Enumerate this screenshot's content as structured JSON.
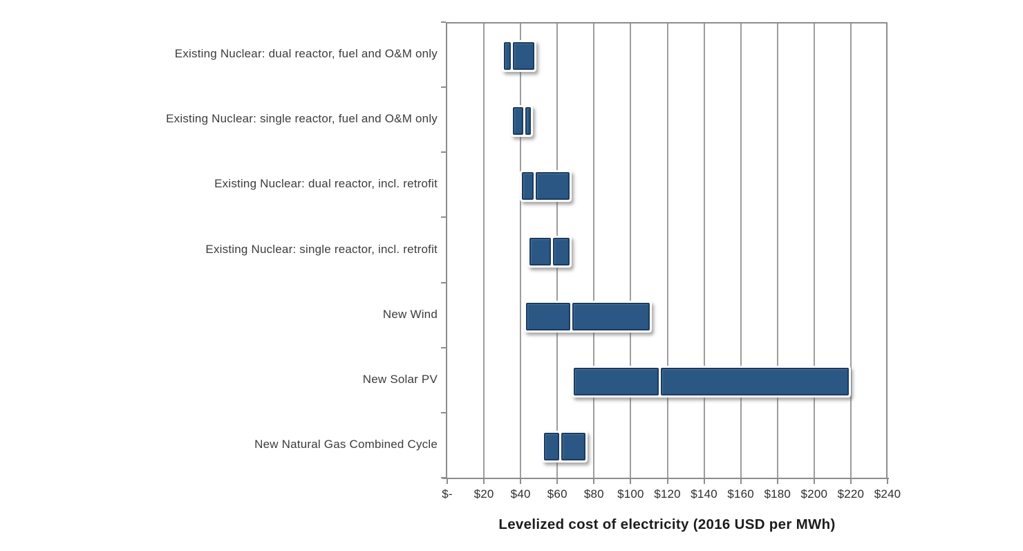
{
  "chart_data": {
    "type": "bar",
    "subtype": "horizontal-range-bars-with-divider",
    "title": "",
    "xlabel": "Levelized cost of electricity (2016 USD per MWh)",
    "ylabel": "",
    "xlim": [
      0,
      240
    ],
    "x_tick_interval": 20,
    "x_tick_labels": [
      "$-",
      "$20",
      "$40",
      "$60",
      "$80",
      "$100",
      "$120",
      "$140",
      "$160",
      "$180",
      "$200",
      "$220",
      "$240"
    ],
    "grid": "vertical",
    "legend": "none",
    "categories": [
      "Existing Nuclear: dual reactor, fuel and O&M only",
      "Existing Nuclear: single reactor, fuel and O&M only",
      "Existing Nuclear: dual reactor, incl. retrofit",
      "Existing Nuclear: single reactor, incl. retrofit",
      "New Wind",
      "New Solar PV",
      "New Natural Gas Combined Cycle"
    ],
    "bars": [
      {
        "category": "Existing Nuclear: dual reactor, fuel and O&M only",
        "low": 31,
        "divider": 34.5,
        "high": 50
      },
      {
        "category": "Existing Nuclear: single reactor, fuel and O&M only",
        "low": 36,
        "divider": 45,
        "high": 48
      },
      {
        "category": "Existing Nuclear: dual reactor, incl. retrofit",
        "low": 41,
        "divider": 47,
        "high": 69
      },
      {
        "category": "Existing Nuclear: single reactor, incl. retrofit",
        "low": 45,
        "divider": 59,
        "high": 69
      },
      {
        "category": "New Wind",
        "low": 43,
        "divider": 68,
        "high": 113
      },
      {
        "category": "New Solar PV",
        "low": 69,
        "divider": 116,
        "high": 222
      },
      {
        "category": "New Natural Gas Combined Cycle",
        "low": 53,
        "divider": 62,
        "high": 78
      }
    ]
  },
  "colors": {
    "bar_fill": "#2a5783",
    "bar_border": "#1b3a5e",
    "bar_outline": "#ffffff",
    "gridline": "#9d9d9d",
    "axis": "#8c8c8c",
    "label_text": "#3c3c3c",
    "tick_text": "#2e2e2e",
    "title_text": "#1c1c1c",
    "background": "#ffffff"
  }
}
